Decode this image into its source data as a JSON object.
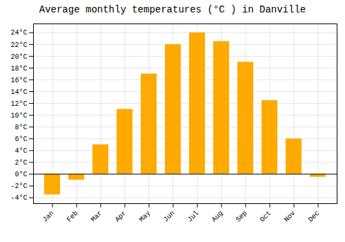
{
  "chart_data": {
    "type": "bar",
    "title": "Average monthly temperatures (°C ) in Danville",
    "categories": [
      "Jan",
      "Feb",
      "Mar",
      "Apr",
      "May",
      "Jun",
      "Jul",
      "Aug",
      "Sep",
      "Oct",
      "Nov",
      "Dec"
    ],
    "values": [
      -3.5,
      -1.0,
      5.0,
      11.0,
      17.0,
      22.0,
      24.0,
      22.5,
      19.0,
      12.5,
      6.0,
      -0.5
    ],
    "color": "#FFAA00",
    "ylim": [
      -5,
      25.5
    ],
    "yticks": [
      {
        "value": -4,
        "label": "-4°C"
      },
      {
        "value": -2,
        "label": "-2°C"
      },
      {
        "value": 0,
        "label": "0°C"
      },
      {
        "value": 2,
        "label": "2°C"
      },
      {
        "value": 4,
        "label": "4°C"
      },
      {
        "value": 6,
        "label": "6°C"
      },
      {
        "value": 8,
        "label": "8°C"
      },
      {
        "value": 10,
        "label": "10°C"
      },
      {
        "value": 12,
        "label": "12°C"
      },
      {
        "value": 14,
        "label": "14°C"
      },
      {
        "value": 16,
        "label": "16°C"
      },
      {
        "value": 18,
        "label": "18°C"
      },
      {
        "value": 20,
        "label": "20°C"
      },
      {
        "value": 22,
        "label": "22°C"
      },
      {
        "value": 24,
        "label": "24°C"
      }
    ],
    "grid": true
  }
}
